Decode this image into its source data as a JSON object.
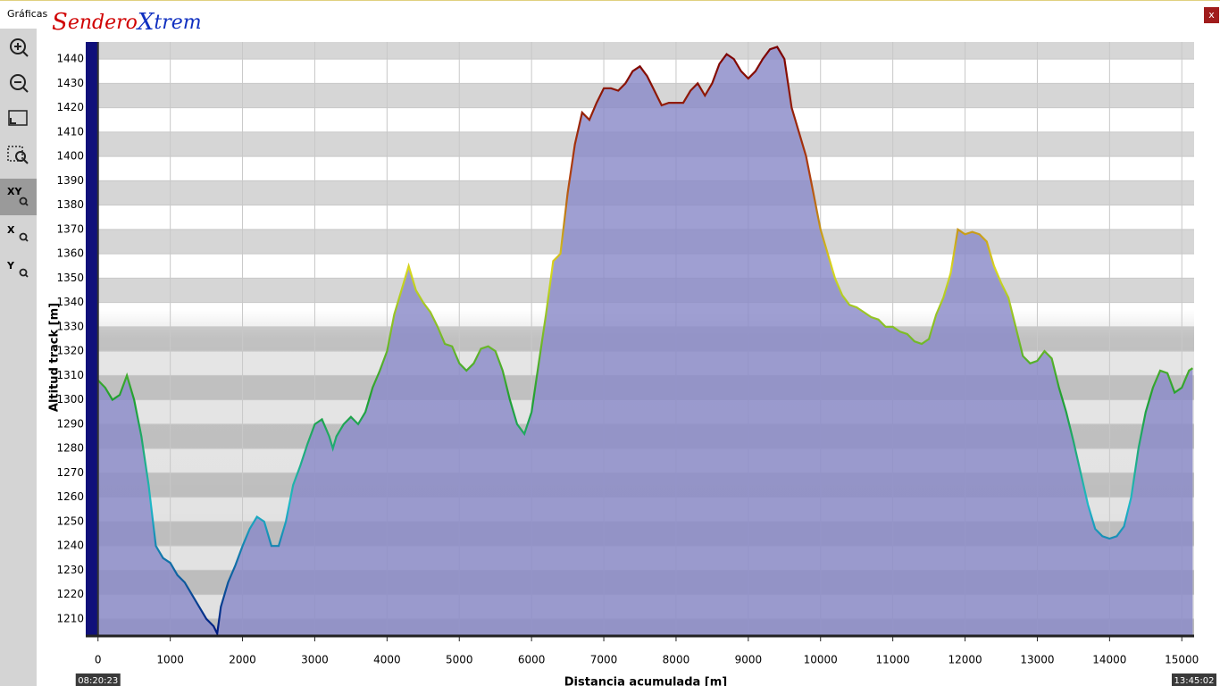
{
  "window": {
    "title": "Gráficas",
    "logo": [
      "S",
      "endero",
      "X",
      "trem"
    ],
    "close": "x",
    "tools": [
      "XY",
      "X",
      "Y"
    ]
  },
  "chart_data": {
    "type": "area",
    "xlabel": "Distancia acumulada [m]",
    "ylabel": "Altitud track [m]",
    "start_time": "08:20:23",
    "end_time": "13:45:02",
    "color": "#8a8ac8",
    "x": [
      0,
      100,
      200,
      300,
      400,
      500,
      600,
      700,
      800,
      900,
      1000,
      1100,
      1200,
      1300,
      1400,
      1500,
      1600,
      1650,
      1700,
      1800,
      1900,
      2000,
      2100,
      2200,
      2300,
      2400,
      2500,
      2600,
      2700,
      2800,
      2900,
      3000,
      3100,
      3200,
      3250,
      3300,
      3400,
      3500,
      3600,
      3700,
      3800,
      3900,
      4000,
      4100,
      4200,
      4300,
      4400,
      4500,
      4600,
      4700,
      4800,
      4900,
      5000,
      5100,
      5200,
      5300,
      5400,
      5500,
      5600,
      5700,
      5800,
      5900,
      6000,
      6100,
      6200,
      6300,
      6400,
      6500,
      6600,
      6700,
      6800,
      6900,
      7000,
      7100,
      7200,
      7300,
      7400,
      7500,
      7600,
      7700,
      7800,
      7900,
      8000,
      8100,
      8200,
      8300,
      8400,
      8500,
      8600,
      8700,
      8800,
      8900,
      9000,
      9100,
      9200,
      9300,
      9400,
      9500,
      9600,
      9700,
      9800,
      9900,
      10000,
      10100,
      10200,
      10300,
      10400,
      10500,
      10600,
      10700,
      10800,
      10900,
      11000,
      11100,
      11200,
      11300,
      11400,
      11500,
      11600,
      11700,
      11800,
      11900,
      12000,
      12100,
      12200,
      12300,
      12400,
      12500,
      12600,
      12700,
      12800,
      12900,
      13000,
      13100,
      13200,
      13300,
      13400,
      13500,
      13600,
      13700,
      13800,
      13900,
      14000,
      14100,
      14200,
      14300,
      14400,
      14500,
      14600,
      14700,
      14800,
      14900,
      15000,
      15100,
      15150
    ],
    "values": [
      1308,
      1305,
      1300,
      1302,
      1310,
      1300,
      1285,
      1265,
      1240,
      1235,
      1233,
      1228,
      1225,
      1220,
      1215,
      1210,
      1207,
      1204,
      1215,
      1225,
      1232,
      1240,
      1247,
      1252,
      1250,
      1240,
      1240,
      1250,
      1265,
      1273,
      1282,
      1290,
      1292,
      1285,
      1280,
      1285,
      1290,
      1293,
      1290,
      1295,
      1305,
      1312,
      1320,
      1335,
      1345,
      1355,
      1345,
      1340,
      1336,
      1330,
      1323,
      1322,
      1315,
      1312,
      1315,
      1321,
      1322,
      1320,
      1312,
      1300,
      1290,
      1286,
      1295,
      1315,
      1335,
      1357,
      1360,
      1385,
      1405,
      1418,
      1415,
      1422,
      1428,
      1428,
      1427,
      1430,
      1435,
      1437,
      1433,
      1427,
      1421,
      1422,
      1422,
      1422,
      1427,
      1430,
      1425,
      1430,
      1438,
      1442,
      1440,
      1435,
      1432,
      1435,
      1440,
      1444,
      1445,
      1440,
      1420,
      1410,
      1400,
      1385,
      1370,
      1360,
      1350,
      1343,
      1339,
      1338,
      1336,
      1334,
      1333,
      1330,
      1330,
      1328,
      1327,
      1324,
      1323,
      1325,
      1335,
      1342,
      1352,
      1370,
      1368,
      1369,
      1368,
      1365,
      1355,
      1348,
      1342,
      1330,
      1318,
      1315,
      1316,
      1320,
      1317,
      1305,
      1295,
      1283,
      1270,
      1257,
      1247,
      1244,
      1243,
      1244,
      1248,
      1260,
      1280,
      1295,
      1305,
      1312,
      1311,
      1303,
      1305,
      1312,
      1313
    ],
    "xlim": [
      -170,
      15170
    ],
    "ylim": [
      1203,
      1447
    ],
    "xticks": [
      0,
      1000,
      2000,
      3000,
      4000,
      5000,
      6000,
      7000,
      8000,
      9000,
      10000,
      11000,
      12000,
      13000,
      14000,
      15000
    ],
    "yticks": [
      1210,
      1220,
      1230,
      1240,
      1250,
      1260,
      1270,
      1280,
      1290,
      1300,
      1310,
      1320,
      1330,
      1340,
      1350,
      1360,
      1370,
      1380,
      1390,
      1400,
      1410,
      1420,
      1430,
      1440
    ],
    "grid": true
  }
}
